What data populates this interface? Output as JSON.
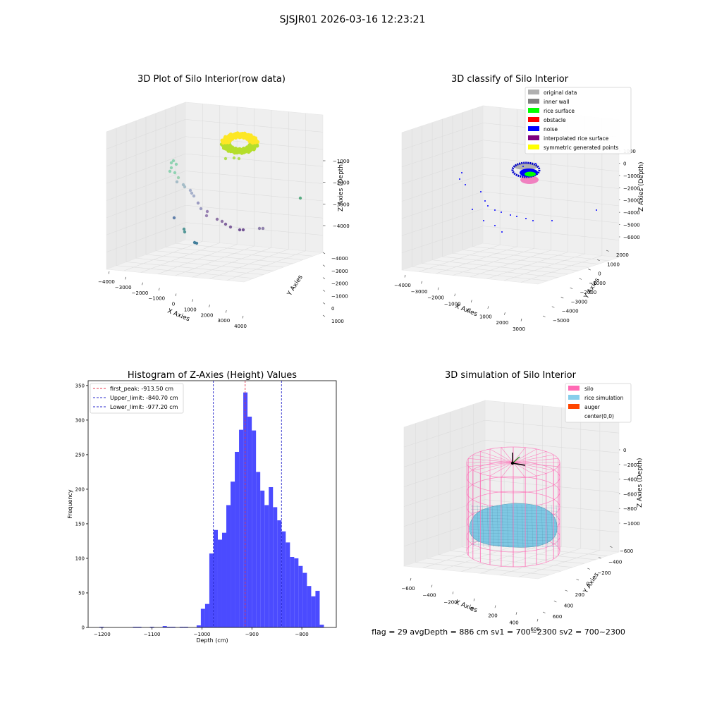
{
  "figure": {
    "suptitle": "SJSJR01 2026-03-16 12:23:21",
    "status_line": "flag = 29   avgDepth = 886 cm   sv1 = 700~2300   sv2 = 700~2300"
  },
  "chart_data": [
    {
      "type": "scatter3d",
      "title": "3D Plot of Silo Interior(row data)",
      "xlabel": "X Axies",
      "ylabel": "Y Axies",
      "zlabel": "Z Axies (Depth)",
      "x_ticks": [
        "−4000",
        "−3000",
        "−2000",
        "−1000",
        "0",
        "1000",
        "2000",
        "3000",
        "4000"
      ],
      "y_ticks": [
        "−4000",
        "−3000",
        "−2000",
        "−1000",
        "0",
        "1000"
      ],
      "z_ticks": [
        "−4000",
        "−3000",
        "−2000",
        "−1000"
      ],
      "xlim": [
        -4000,
        4000
      ],
      "ylim": [
        -4000,
        1000
      ],
      "zlim": [
        -4500,
        -600
      ],
      "colormap": "viridis",
      "grid": true
    },
    {
      "type": "scatter3d",
      "title": "3D classify of Silo Interior",
      "xlabel": "X Axies",
      "ylabel": "Y Axies",
      "zlabel": "Z Axies (Depth)",
      "x_ticks": [
        "−4000",
        "−3000",
        "−2000",
        "−1000",
        "0",
        "1000",
        "2000",
        "3000"
      ],
      "y_ticks": [
        "−5000",
        "−4000",
        "−3000",
        "−2000",
        "−1000",
        "0",
        "1000",
        "2000"
      ],
      "z_ticks": [
        "−6000",
        "−5000",
        "−4000",
        "−3000",
        "−2000",
        "−1000",
        "0",
        "1000"
      ],
      "legend": [
        {
          "name": "original data",
          "color": "#b0b0b0"
        },
        {
          "name": "inner wall",
          "color": "#808080"
        },
        {
          "name": "rice surface",
          "color": "#00ff00"
        },
        {
          "name": "obstacle",
          "color": "#ff0000"
        },
        {
          "name": "noise",
          "color": "#0000ff"
        },
        {
          "name": "interpolated rice surface",
          "color": "#800080"
        },
        {
          "name": "symmetric generated points",
          "color": "#ffff00"
        }
      ],
      "legend_position": "top-right",
      "grid": true
    },
    {
      "type": "histogram",
      "title": "Histogram of Z-Axies (Height) Values",
      "xlabel": "Depth (cm)",
      "ylabel": "Frequency",
      "xlim": [
        -1228,
        -731
      ],
      "ylim": [
        0,
        357
      ],
      "x_ticks": [
        -1200,
        -1100,
        -1000,
        -900,
        -800
      ],
      "y_ticks": [
        0,
        50,
        100,
        150,
        200,
        250,
        300,
        350
      ],
      "bin_width": 8.5,
      "bins": [
        {
          "x": -1201,
          "count": 1
        },
        {
          "x": -1134,
          "count": 1
        },
        {
          "x": -1125.5,
          "count": 1
        },
        {
          "x": -1100,
          "count": 1
        },
        {
          "x": -1074.5,
          "count": 2
        },
        {
          "x": -1066,
          "count": 1
        },
        {
          "x": -1057.5,
          "count": 1
        },
        {
          "x": -1040.5,
          "count": 1
        },
        {
          "x": -1032,
          "count": 1
        },
        {
          "x": -1006.5,
          "count": 3
        },
        {
          "x": -998,
          "count": 27
        },
        {
          "x": -989.5,
          "count": 34
        },
        {
          "x": -981,
          "count": 107
        },
        {
          "x": -972.5,
          "count": 141
        },
        {
          "x": -964,
          "count": 127
        },
        {
          "x": -955.5,
          "count": 137
        },
        {
          "x": -947,
          "count": 177
        },
        {
          "x": -938.5,
          "count": 211
        },
        {
          "x": -930,
          "count": 254
        },
        {
          "x": -921.5,
          "count": 286
        },
        {
          "x": -913,
          "count": 340
        },
        {
          "x": -904.5,
          "count": 305
        },
        {
          "x": -896,
          "count": 285
        },
        {
          "x": -887.5,
          "count": 225
        },
        {
          "x": -879,
          "count": 198
        },
        {
          "x": -870.5,
          "count": 177
        },
        {
          "x": -862,
          "count": 203
        },
        {
          "x": -853.5,
          "count": 174
        },
        {
          "x": -845,
          "count": 155
        },
        {
          "x": -836.5,
          "count": 139
        },
        {
          "x": -828,
          "count": 123
        },
        {
          "x": -819.5,
          "count": 102
        },
        {
          "x": -811,
          "count": 100
        },
        {
          "x": -802.5,
          "count": 89
        },
        {
          "x": -794,
          "count": 79
        },
        {
          "x": -785.5,
          "count": 60
        },
        {
          "x": -777,
          "count": 45
        },
        {
          "x": -768.5,
          "count": 53
        },
        {
          "x": -760,
          "count": 4
        }
      ],
      "bar_color": "#4b4bff",
      "vlines": [
        {
          "name": "first_peak: -913.50 cm",
          "x": -913.5,
          "color": "#e8384f"
        },
        {
          "name": "Upper_limit: -840.70 cm",
          "x": -840.7,
          "color": "#2a2acc"
        },
        {
          "name": "Lower_limit: -977.20 cm",
          "x": -977.2,
          "color": "#2a2acc"
        }
      ],
      "legend_position": "top-left"
    },
    {
      "type": "surface3d",
      "title": "3D simulation of Silo Interior",
      "xlabel": "X Axies",
      "ylabel": "Y Axies",
      "zlabel": "Z Axies (Depth)",
      "x_ticks": [
        "−600",
        "−400",
        "−200",
        "0",
        "200",
        "400",
        "600"
      ],
      "y_ticks": [
        "−600",
        "−400",
        "−200",
        "0",
        "200",
        "400",
        "600"
      ],
      "z_ticks": [
        "−1000",
        "−800",
        "−600",
        "−400",
        "−200",
        "0"
      ],
      "legend": [
        {
          "name": "silo",
          "color": "#ff69b4"
        },
        {
          "name": "rice simulation",
          "color": "#87ceeb"
        },
        {
          "name": "auger",
          "color": "#ff4500"
        },
        {
          "name": "center(0,0)",
          "color": ""
        }
      ],
      "legend_position": "top-right",
      "grid": true
    }
  ]
}
